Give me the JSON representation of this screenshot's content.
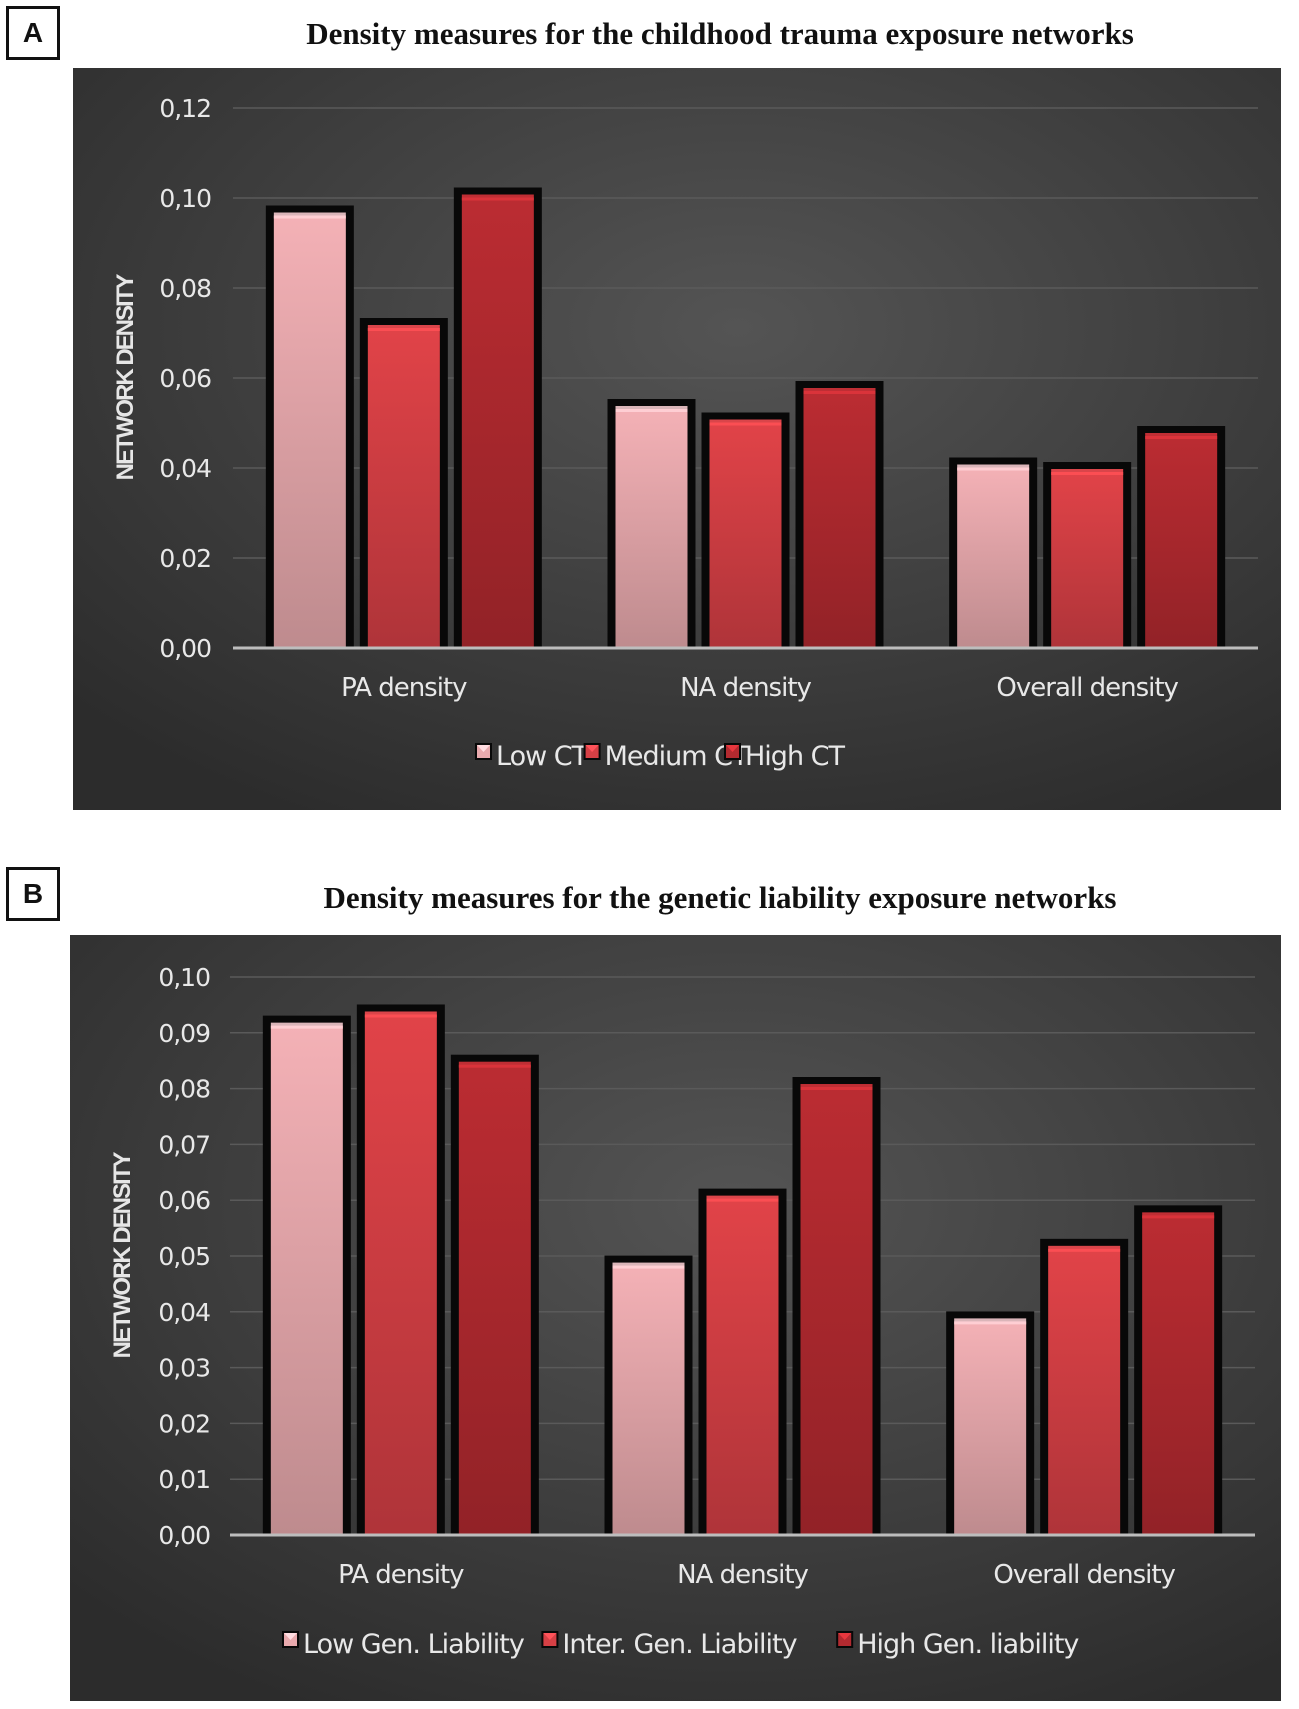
{
  "chart_data": [
    {
      "panel": "A",
      "type": "bar",
      "title": "Density measures for the childhood trauma exposure networks",
      "ylabel": "NETWORK DENSITY",
      "xlabel": "",
      "categories": [
        "PA density",
        "NA density",
        "Overall density"
      ],
      "ylim": [
        0,
        0.12
      ],
      "yticks": [
        "0,00",
        "0,02",
        "0,04",
        "0,06",
        "0,08",
        "0,10",
        "0,12"
      ],
      "series": [
        {
          "name": "Low CT",
          "color": "#e8a9ad",
          "values": [
            0.097,
            0.054,
            0.041
          ]
        },
        {
          "name": "Medium CT",
          "color": "#d64045",
          "values": [
            0.072,
            0.051,
            0.04
          ]
        },
        {
          "name": "High CT",
          "color": "#b22a30",
          "values": [
            0.101,
            0.058,
            0.048
          ]
        }
      ],
      "legend": "bottom",
      "grid": true
    },
    {
      "panel": "B",
      "type": "bar",
      "title": "Density measures for the genetic liability exposure networks",
      "ylabel": "NETWORK DENSITY",
      "xlabel": "",
      "categories": [
        "PA density",
        "NA density",
        "Overall density"
      ],
      "ylim": [
        0,
        0.1
      ],
      "yticks": [
        "0,00",
        "0,01",
        "0,02",
        "0,03",
        "0,04",
        "0,05",
        "0,06",
        "0,07",
        "0,08",
        "0,09",
        "0,10"
      ],
      "series": [
        {
          "name": "Low Gen. Liability",
          "color": "#e8a9ad",
          "values": [
            0.092,
            0.049,
            0.039
          ]
        },
        {
          "name": "Inter. Gen. Liability",
          "color": "#d64045",
          "values": [
            0.094,
            0.061,
            0.052
          ]
        },
        {
          "name": "High Gen. liability",
          "color": "#b22a30",
          "values": [
            0.085,
            0.081,
            0.058
          ]
        }
      ],
      "legend": "bottom",
      "grid": true
    }
  ],
  "colors": {
    "background": "#3a3a3a",
    "gridline": "#5a5a5a",
    "text": "#e8e8e8"
  }
}
